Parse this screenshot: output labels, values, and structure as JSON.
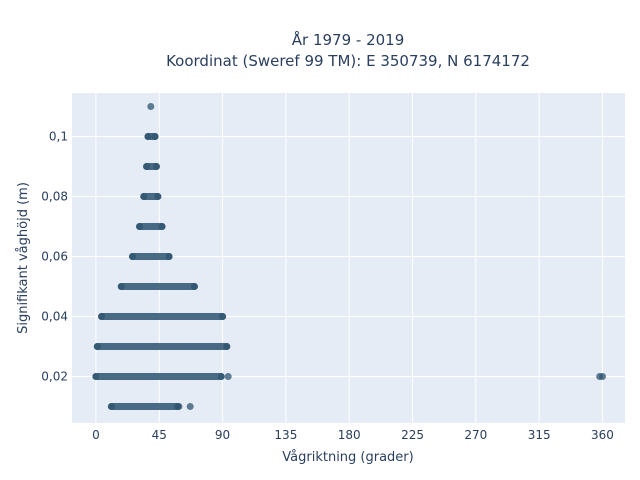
{
  "chart_data": {
    "type": "scatter",
    "title_line1": "År 1979 - 2019",
    "title_line2": "Koordinat (Sweref 99 TM): E 350739, N 6174172",
    "xlabel": "Vågriktning (grader)",
    "ylabel": "Signifikant våghöjd (m)",
    "xlim": [
      -17,
      376
    ],
    "ylim": [
      0.0045,
      0.1145
    ],
    "x_ticks": [
      0,
      45,
      90,
      135,
      180,
      225,
      270,
      315,
      360
    ],
    "x_tick_labels": [
      "0",
      "45",
      "90",
      "135",
      "180",
      "225",
      "270",
      "315",
      "360"
    ],
    "y_ticks": [
      0.02,
      0.04,
      0.06,
      0.08,
      0.1
    ],
    "y_tick_labels": [
      "0,02",
      "0,04",
      "0,06",
      "0,08",
      "0,1"
    ],
    "grid": true,
    "colors": {
      "plot_bg": "#e5ecf6",
      "grid": "#ffffff",
      "marker": "#2e5470",
      "text": "#2a3f5f"
    },
    "bands": [
      {
        "y": 0.01,
        "x_min": 11,
        "x_max": 58
      },
      {
        "y": 0.02,
        "x_min": 0,
        "x_max": 89
      },
      {
        "y": 0.03,
        "x_min": 1,
        "x_max": 93
      },
      {
        "y": 0.04,
        "x_min": 4,
        "x_max": 90
      },
      {
        "y": 0.05,
        "x_min": 18,
        "x_max": 70
      },
      {
        "y": 0.06,
        "x_min": 26,
        "x_max": 52
      },
      {
        "y": 0.07,
        "x_min": 31,
        "x_max": 47
      },
      {
        "y": 0.08,
        "x_min": 34,
        "x_max": 44
      },
      {
        "y": 0.09,
        "x_min": 36,
        "x_max": 43
      },
      {
        "y": 0.1,
        "x_min": 37,
        "x_max": 42
      }
    ],
    "points": [
      {
        "x": 39,
        "y": 0.11
      },
      {
        "x": 59,
        "y": 0.01
      },
      {
        "x": 67,
        "y": 0.01
      },
      {
        "x": 94,
        "y": 0.02
      },
      {
        "x": 358,
        "y": 0.02
      },
      {
        "x": 360,
        "y": 0.02
      }
    ]
  }
}
